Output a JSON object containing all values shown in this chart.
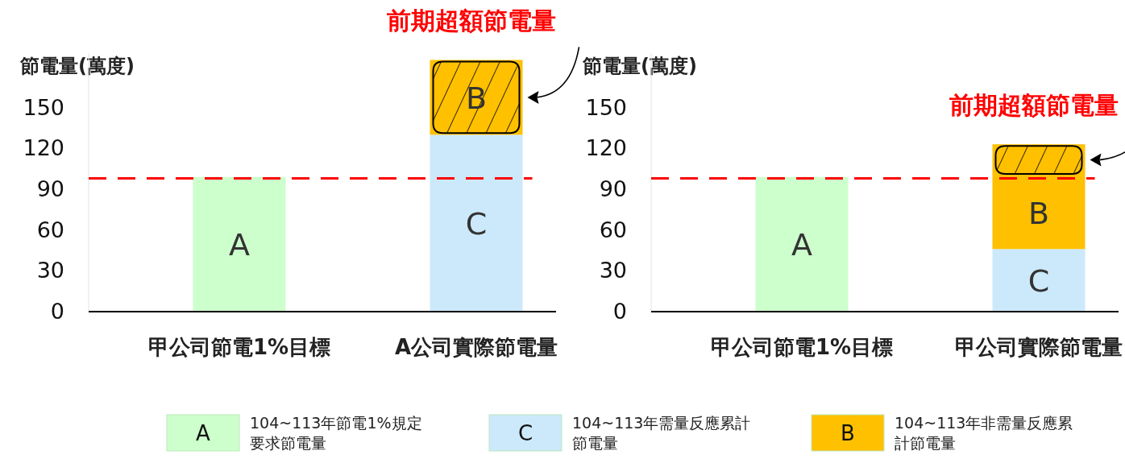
{
  "chart_data": [
    {
      "type": "bar",
      "stacked": true,
      "ylabel": "節電量(萬度)",
      "categories": [
        "甲公司節電1%目標",
        "A公司實際節電量"
      ],
      "ylim": [
        0,
        190
      ],
      "yticks": [
        0,
        30,
        60,
        90,
        120,
        150
      ],
      "grid": false,
      "legend": "bottom",
      "series": [
        {
          "name": "104~113年節電1%規定要求節電量",
          "color": "#ccffcc",
          "values": [
            99,
            null
          ],
          "value_labels": [
            "A",
            null
          ]
        },
        {
          "name": "104~113年需量反應累計節電量",
          "color": "#cce9fb",
          "values": [
            null,
            130
          ],
          "value_labels": [
            null,
            "C"
          ]
        },
        {
          "name": "104~113年非需量反應累計節電量",
          "color": "#ffc000",
          "values": [
            null,
            55
          ],
          "value_labels": [
            null,
            "B"
          ]
        }
      ],
      "ref_lines": [
        {
          "axis": "y",
          "value": 98,
          "color": "#ff0000",
          "line_style": "dashed"
        }
      ],
      "annotations": [
        {
          "text": "前期超額節電量",
          "x": "A公司實際節電量",
          "y": 185
        }
      ]
    },
    {
      "type": "bar",
      "stacked": true,
      "ylabel": "節電量(萬度)",
      "categories": [
        "甲公司節電1%目標",
        "甲公司實際節電量"
      ],
      "ylim": [
        0,
        190
      ],
      "yticks": [
        0,
        30,
        60,
        90,
        120,
        150
      ],
      "grid": false,
      "legend": false,
      "series": [
        {
          "color": "#ccffcc",
          "values": [
            99,
            null
          ],
          "value_labels": [
            "A",
            null
          ]
        },
        {
          "color": "#cce9fb",
          "values": [
            null,
            46
          ],
          "value_labels": [
            null,
            "C"
          ]
        },
        {
          "color": "#ffc000",
          "values": [
            null,
            54
          ],
          "value_labels": [
            null,
            "B"
          ]
        },
        {
          "color": "#ffc000",
          "values": [
            null,
            23
          ]
        }
      ],
      "ref_lines": [
        {
          "axis": "y",
          "value": 98,
          "color": "#ff0000",
          "line_style": "dashed"
        }
      ],
      "annotations": [
        {
          "text": "前期超額節電量",
          "x": "甲公司實際節電量",
          "y": 123
        }
      ]
    }
  ]
}
